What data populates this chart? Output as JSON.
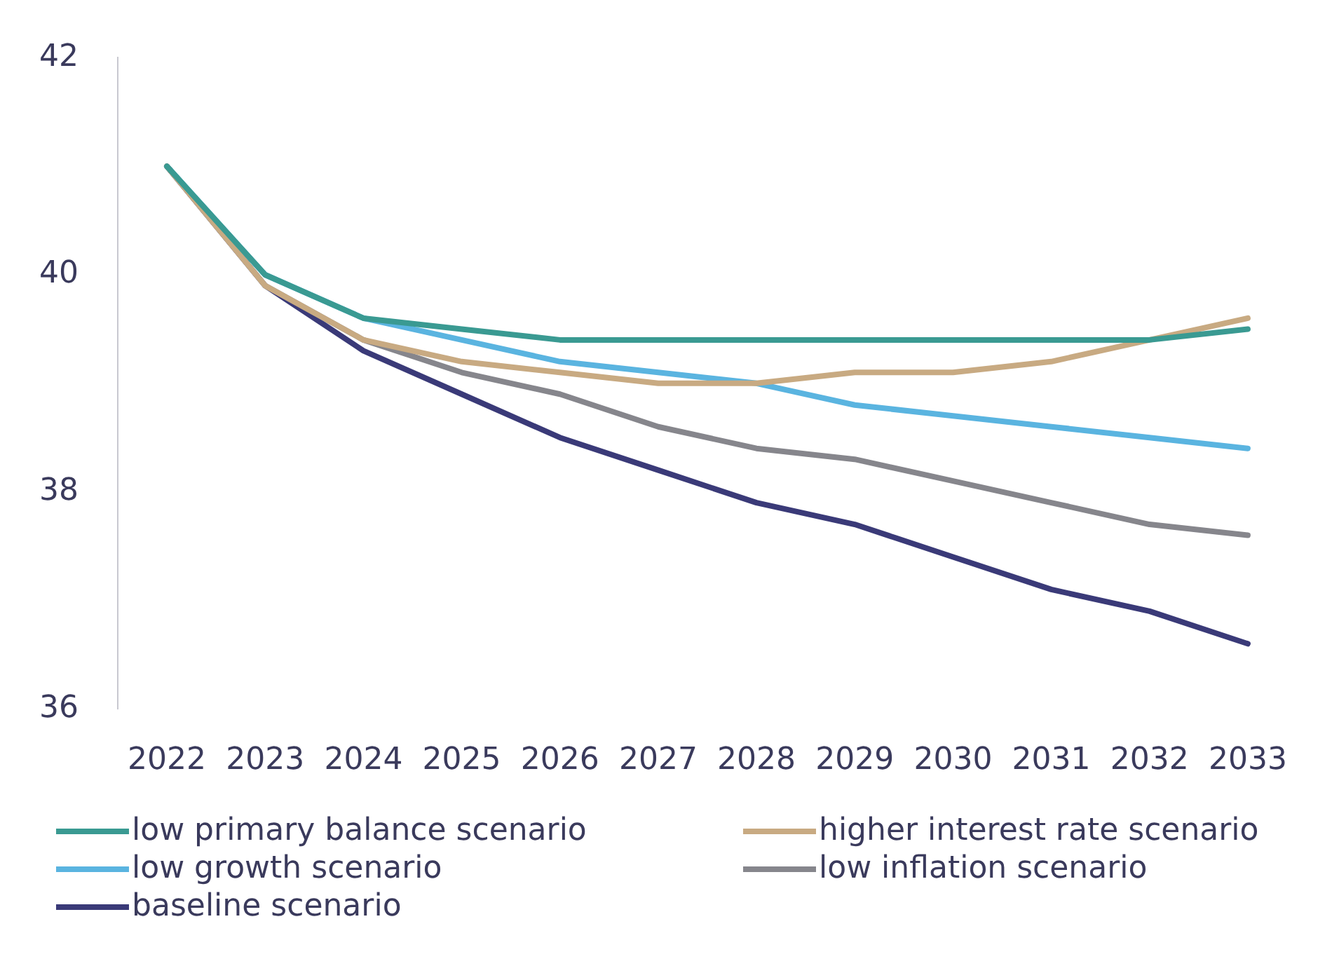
{
  "chart_data": {
    "type": "line",
    "categories": [
      "2022",
      "2023",
      "2024",
      "2025",
      "2026",
      "2027",
      "2028",
      "2029",
      "2030",
      "2031",
      "2032",
      "2033"
    ],
    "ylim": [
      36,
      42
    ],
    "yticks": [
      36,
      38,
      40,
      42
    ],
    "grid": false,
    "legend": "bottom",
    "marker": "none",
    "line_style": "solid",
    "series": [
      {
        "name": "low primary balance scenario",
        "color": "#3a9a92",
        "values": [
          41,
          40,
          39.6,
          39.5,
          39.4,
          39.4,
          39.4,
          39.4,
          39.4,
          39.4,
          39.4,
          39.5
        ]
      },
      {
        "name": "higher interest rate scenario",
        "color": "#c8aa82",
        "values": [
          41,
          39.9,
          39.4,
          39.2,
          39.1,
          39.0,
          39.0,
          39.1,
          39.1,
          39.2,
          39.4,
          39.6
        ]
      },
      {
        "name": "low growth scenario",
        "color": "#5ab4e0",
        "values": [
          41,
          40,
          39.6,
          39.4,
          39.2,
          39.1,
          39.0,
          38.8,
          38.7,
          38.6,
          38.5,
          38.4
        ]
      },
      {
        "name": "low inflation scenario",
        "color": "#86868c",
        "values": [
          41,
          39.9,
          39.4,
          39.1,
          38.9,
          38.6,
          38.4,
          38.3,
          38.1,
          37.9,
          37.7,
          37.6
        ]
      },
      {
        "name": "baseline scenario",
        "color": "#3a3a78",
        "values": [
          41,
          39.9,
          39.3,
          38.9,
          38.5,
          38.2,
          37.9,
          37.7,
          37.4,
          37.1,
          36.9,
          36.6
        ]
      }
    ]
  }
}
